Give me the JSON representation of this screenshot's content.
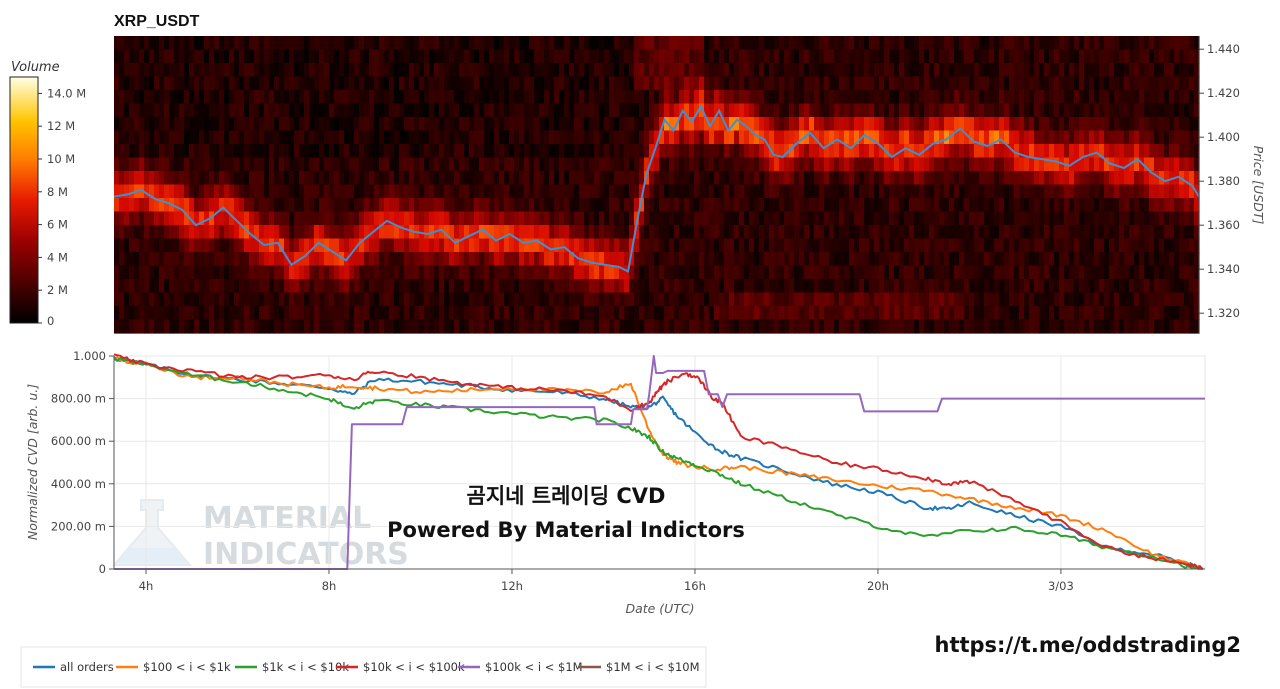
{
  "title": "XRP_USDT",
  "overlay_text": [
    "곰지네 트레이딩 CVD",
    "Powered By Material Indictors"
  ],
  "link_text": "https://t.me/oddstrading2",
  "watermark": [
    "MATERIAL",
    "INDICATORS"
  ],
  "colors": {
    "all_orders": "#1f77b4",
    "b100_1k": "#ff7f0e",
    "b1k_10k": "#2ca02c",
    "b10k_100k": "#d62728",
    "b100k_1m": "#9467bd",
    "b1m_10m": "#8c564b",
    "price_line": "#3f8fd4"
  },
  "chart_data": [
    {
      "type": "heatmap",
      "title": "XRP_USDT",
      "colorbar": {
        "title": "Volume",
        "ticks": [
          "0",
          "2 M",
          "4 M",
          "6 M",
          "8 M",
          "10 M",
          "12 M",
          "14.0 M"
        ],
        "range": [
          0,
          15
        ]
      },
      "ylabel": "Price [USDT]",
      "ylim": [
        1.311,
        1.446
      ],
      "yticks": [
        "1.320",
        "1.340",
        "1.360",
        "1.380",
        "1.400",
        "1.420",
        "1.440"
      ],
      "xlim": [
        3.3,
        27.15
      ],
      "price_line": {
        "x": [
          3.3,
          3.6,
          3.9,
          4.2,
          4.5,
          4.8,
          5.1,
          5.4,
          5.7,
          6.0,
          6.3,
          6.6,
          6.9,
          7.2,
          7.5,
          7.8,
          8.1,
          8.4,
          8.7,
          9.0,
          9.3,
          9.6,
          9.9,
          10.2,
          10.5,
          10.8,
          11.1,
          11.4,
          11.7,
          12.0,
          12.3,
          12.6,
          12.9,
          13.2,
          13.5,
          13.8,
          14.1,
          14.4,
          14.6,
          14.8,
          15.0,
          15.2,
          15.4,
          15.6,
          15.8,
          16.0,
          16.2,
          16.4,
          16.6,
          16.8,
          17.0,
          17.2,
          17.4,
          17.6,
          17.8,
          18.0,
          18.3,
          18.6,
          18.9,
          19.2,
          19.5,
          19.8,
          20.1,
          20.4,
          20.7,
          21.0,
          21.3,
          21.6,
          21.9,
          22.2,
          22.5,
          22.8,
          23.1,
          23.4,
          23.7,
          24.0,
          24.3,
          24.6,
          24.9,
          25.2,
          25.5,
          25.8,
          26.1,
          26.4,
          26.7,
          27.0,
          27.15
        ],
        "y": [
          1.373,
          1.374,
          1.376,
          1.372,
          1.37,
          1.367,
          1.36,
          1.363,
          1.368,
          1.362,
          1.356,
          1.351,
          1.352,
          1.342,
          1.346,
          1.352,
          1.348,
          1.344,
          1.352,
          1.357,
          1.362,
          1.359,
          1.357,
          1.356,
          1.358,
          1.352,
          1.355,
          1.358,
          1.353,
          1.356,
          1.352,
          1.353,
          1.349,
          1.35,
          1.345,
          1.343,
          1.342,
          1.341,
          1.339,
          1.362,
          1.383,
          1.395,
          1.408,
          1.403,
          1.412,
          1.407,
          1.414,
          1.405,
          1.412,
          1.403,
          1.408,
          1.405,
          1.401,
          1.399,
          1.392,
          1.391,
          1.397,
          1.402,
          1.395,
          1.399,
          1.395,
          1.401,
          1.397,
          1.391,
          1.395,
          1.392,
          1.397,
          1.399,
          1.404,
          1.398,
          1.396,
          1.399,
          1.393,
          1.391,
          1.39,
          1.389,
          1.387,
          1.391,
          1.393,
          1.388,
          1.386,
          1.39,
          1.384,
          1.38,
          1.382,
          1.378,
          1.373
        ]
      }
    },
    {
      "type": "line",
      "xlabel": "Date (UTC)",
      "ylabel": "Normalized CVD [arb. u.]",
      "xlim": [
        3.3,
        27.15
      ],
      "ylim": [
        0,
        1.0
      ],
      "xticks": [
        {
          "v": 4,
          "label": "4h"
        },
        {
          "v": 8,
          "label": "8h"
        },
        {
          "v": 12,
          "label": "12h"
        },
        {
          "v": 16,
          "label": "16h"
        },
        {
          "v": 20,
          "label": "20h"
        },
        {
          "v": 24,
          "label": "3/03"
        }
      ],
      "yticks": [
        {
          "v": 0,
          "label": "0"
        },
        {
          "v": 0.2,
          "label": "200.00 m"
        },
        {
          "v": 0.4,
          "label": "400.00 m"
        },
        {
          "v": 0.6,
          "label": "600.00 m"
        },
        {
          "v": 0.8,
          "label": "800.00 m"
        },
        {
          "v": 1.0,
          "label": "1.000"
        }
      ],
      "grid": true,
      "legend_position": "bottom",
      "series": [
        {
          "name": "all orders",
          "color": "#1f77b4",
          "x": [
            3.3,
            4.0,
            5.0,
            6.0,
            7.0,
            8.0,
            8.5,
            9.0,
            10.0,
            11.0,
            12.0,
            13.0,
            14.0,
            14.6,
            15.0,
            15.3,
            15.6,
            16.0,
            16.5,
            17.0,
            18.0,
            19.0,
            20.0,
            21.0,
            21.5,
            22.0,
            23.0,
            24.0,
            25.0,
            26.0,
            26.8,
            27.1
          ],
          "y": [
            0.99,
            0.96,
            0.91,
            0.89,
            0.87,
            0.85,
            0.82,
            0.89,
            0.88,
            0.86,
            0.84,
            0.83,
            0.8,
            0.76,
            0.76,
            0.8,
            0.72,
            0.64,
            0.56,
            0.52,
            0.46,
            0.4,
            0.36,
            0.29,
            0.28,
            0.31,
            0.25,
            0.2,
            0.1,
            0.07,
            0.02,
            0.0
          ]
        },
        {
          "name": "$100 < i < $1k",
          "color": "#ff7f0e",
          "x": [
            3.3,
            4.0,
            5.0,
            6.0,
            7.0,
            8.0,
            8.5,
            9.0,
            10.0,
            11.0,
            12.0,
            13.0,
            14.0,
            14.6,
            15.0,
            15.3,
            15.6,
            16.0,
            16.5,
            17.0,
            18.0,
            19.0,
            20.0,
            21.0,
            22.0,
            23.0,
            24.0,
            25.0,
            26.0,
            26.8,
            27.1
          ],
          "y": [
            0.99,
            0.96,
            0.9,
            0.9,
            0.87,
            0.85,
            0.86,
            0.85,
            0.83,
            0.84,
            0.85,
            0.84,
            0.83,
            0.87,
            0.65,
            0.54,
            0.5,
            0.48,
            0.47,
            0.48,
            0.45,
            0.42,
            0.39,
            0.37,
            0.33,
            0.29,
            0.25,
            0.18,
            0.07,
            0.02,
            0.0
          ]
        },
        {
          "name": "$1k < i < $10k",
          "color": "#2ca02c",
          "x": [
            3.3,
            4.0,
            5.0,
            6.0,
            7.0,
            8.0,
            8.5,
            9.0,
            10.0,
            11.0,
            12.0,
            13.0,
            14.0,
            14.6,
            15.0,
            15.3,
            15.6,
            16.0,
            16.5,
            17.0,
            18.0,
            19.0,
            20.0,
            21.0,
            22.0,
            23.0,
            24.0,
            25.0,
            26.0,
            26.8,
            27.1
          ],
          "y": [
            0.99,
            0.96,
            0.91,
            0.88,
            0.84,
            0.8,
            0.75,
            0.79,
            0.77,
            0.75,
            0.73,
            0.71,
            0.7,
            0.66,
            0.62,
            0.55,
            0.52,
            0.49,
            0.45,
            0.4,
            0.33,
            0.26,
            0.2,
            0.15,
            0.18,
            0.19,
            0.16,
            0.1,
            0.06,
            0.01,
            0.0
          ]
        },
        {
          "name": "$10k < i < $100k",
          "color": "#d62728",
          "x": [
            3.3,
            4.0,
            5.0,
            6.0,
            7.0,
            8.0,
            8.5,
            9.0,
            10.0,
            11.0,
            12.0,
            13.0,
            14.0,
            14.6,
            15.0,
            15.2,
            15.4,
            15.8,
            16.1,
            16.4,
            16.6,
            17.0,
            18.0,
            19.0,
            20.0,
            21.0,
            21.5,
            22.0,
            23.0,
            24.0,
            25.0,
            26.0,
            26.8,
            27.1
          ],
          "y": [
            1.0,
            0.96,
            0.93,
            0.9,
            0.9,
            0.91,
            0.89,
            0.93,
            0.9,
            0.87,
            0.85,
            0.84,
            0.81,
            0.75,
            0.78,
            0.84,
            0.88,
            0.92,
            0.89,
            0.8,
            0.78,
            0.62,
            0.57,
            0.5,
            0.47,
            0.43,
            0.4,
            0.41,
            0.32,
            0.22,
            0.1,
            0.05,
            0.02,
            0.0
          ]
        },
        {
          "name": "$100k < i < $1M",
          "color": "#9467bd",
          "x": [
            3.3,
            8.4,
            8.5,
            9.6,
            9.7,
            13.8,
            13.85,
            14.6,
            14.65,
            14.95,
            15.0,
            15.1,
            15.15,
            15.3,
            15.4,
            16.2,
            16.3,
            16.5,
            16.6,
            16.7,
            16.8,
            19.6,
            19.7,
            21.3,
            21.4,
            27.15
          ],
          "y": [
            0.0,
            0.0,
            0.68,
            0.68,
            0.76,
            0.76,
            0.68,
            0.68,
            0.75,
            0.75,
            0.82,
            1.0,
            0.92,
            0.92,
            0.93,
            0.93,
            0.82,
            0.82,
            0.76,
            0.82,
            0.82,
            0.82,
            0.74,
            0.74,
            0.8,
            0.8
          ]
        },
        {
          "name": "$1M < i < $10M",
          "color": "#8c564b",
          "x": [],
          "y": []
        }
      ]
    }
  ]
}
